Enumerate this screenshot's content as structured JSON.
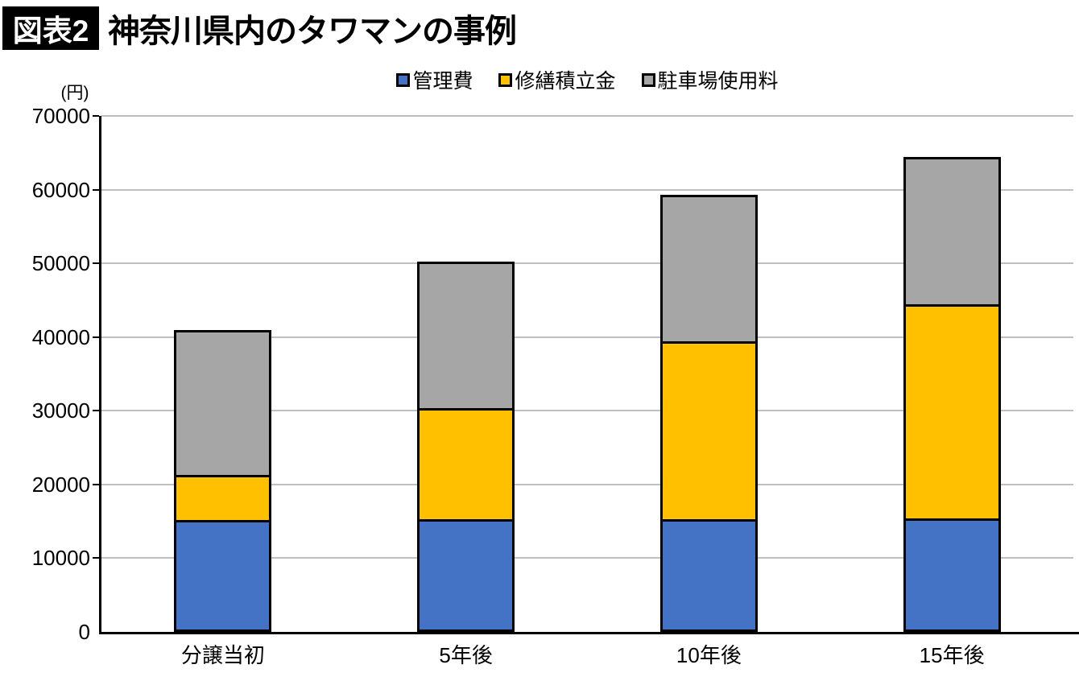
{
  "title": {
    "badge": "図表2",
    "text": "神奈川県内のタワマンの事例"
  },
  "chart_data": {
    "type": "bar",
    "stacked": true,
    "title": "神奈川県内のタワマンの事例",
    "unit_label": "(円)",
    "categories": [
      "分譲当初",
      "5年後",
      "10年後",
      "15年後"
    ],
    "series": [
      {
        "name": "管理費",
        "color": "#4472C4",
        "values": [
          15000,
          15000,
          15000,
          15000
        ]
      },
      {
        "name": "修繕積立金",
        "color": "#FFC000",
        "values": [
          6000,
          15200,
          24300,
          29400
        ]
      },
      {
        "name": "駐車場使用料",
        "color": "#A6A6A6",
        "values": [
          20000,
          20000,
          20000,
          20000
        ]
      }
    ],
    "totals": [
      41000,
      50200,
      59300,
      64400
    ],
    "ylim": [
      0,
      70000
    ],
    "yticks": [
      0,
      10000,
      20000,
      30000,
      40000,
      50000,
      60000,
      70000
    ],
    "grid": true,
    "gridline_color": "#BFBFBF",
    "axis_color": "#000000",
    "bar_border_color": "#000000",
    "legend_position": "top-center"
  }
}
